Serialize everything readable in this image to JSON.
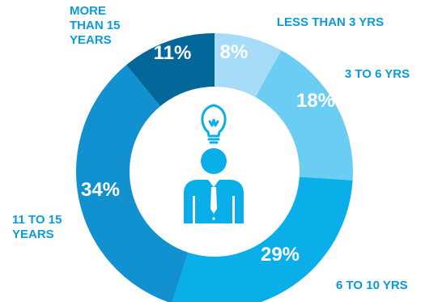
{
  "chart_data": {
    "type": "pie",
    "style": "donut",
    "categories": [
      "LESS THAN 3 YRS",
      "3 TO 6 YRS",
      "6 TO 10 YRS",
      "11 TO 15 YEARS",
      "MORE THAN 15 YEARS"
    ],
    "values": [
      8,
      18,
      29,
      34,
      11
    ],
    "value_labels": [
      "8%",
      "18%",
      "29%",
      "34%",
      "11%"
    ],
    "category_lines": [
      [
        "LESS THAN 3 YRS"
      ],
      [
        "3 TO 6 YRS"
      ],
      [
        "6 TO 10 YRS"
      ],
      [
        "11 TO 15",
        "YEARS"
      ],
      [
        "MORE",
        "THAN 15",
        "YEARS"
      ]
    ],
    "colors": [
      "#a6dcf7",
      "#6ccdf3",
      "#0aaee8",
      "#1191cf",
      "#03679a"
    ],
    "label_color": "#0a9bd8",
    "center_icon": "person-with-lightbulb-icon",
    "icon_color": "#0aaee8"
  }
}
